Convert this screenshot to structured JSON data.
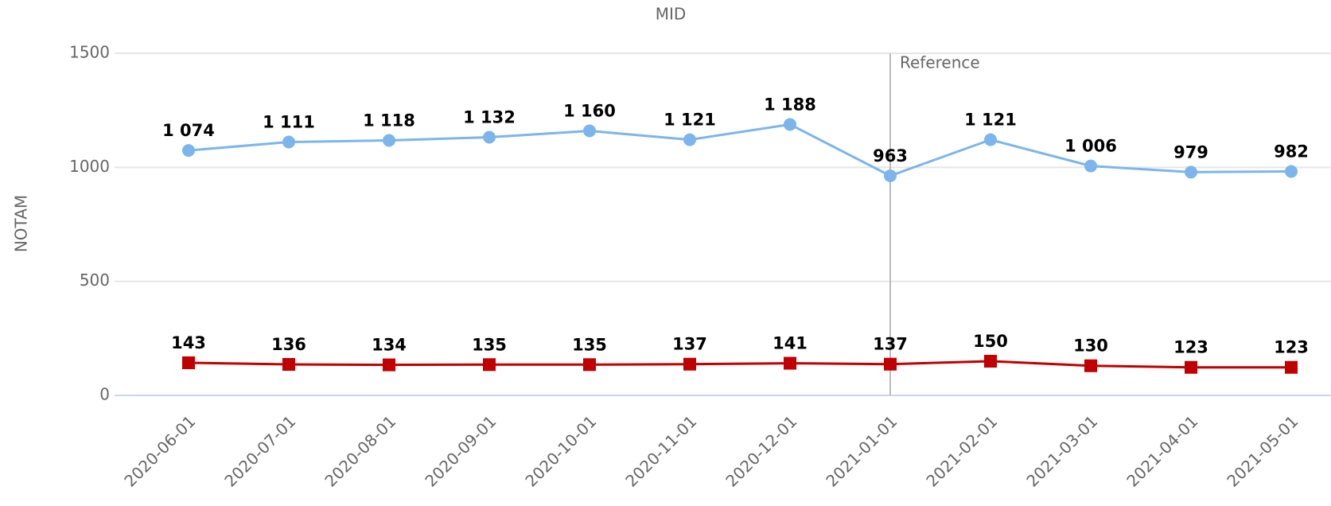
{
  "chart_data": {
    "type": "line",
    "title": "MID",
    "y_label": "NOTAM",
    "categories": [
      "2020-06-01",
      "2020-07-01",
      "2020-08-01",
      "2020-09-01",
      "2020-10-01",
      "2020-11-01",
      "2020-12-01",
      "2021-01-01",
      "2021-02-01",
      "2021-03-01",
      "2021-04-01",
      "2021-05-01"
    ],
    "series": [
      {
        "color": "#7cb5ec",
        "marker": "circle",
        "values": [
          1074,
          1111,
          1118,
          1132,
          1160,
          1121,
          1188,
          963,
          1121,
          1006,
          979,
          982
        ],
        "value_labels": [
          "1 074",
          "1 111",
          "1 118",
          "1 132",
          "1 160",
          "1 121",
          "1 188",
          "963",
          "1 121",
          "1 006",
          "979",
          "982"
        ]
      },
      {
        "color": "#c00000",
        "marker": "square",
        "values": [
          143,
          136,
          134,
          135,
          135,
          137,
          141,
          137,
          150,
          130,
          123,
          123
        ]
      }
    ],
    "annotations": [
      {
        "text": "Reference",
        "x": "2021-01-01"
      }
    ],
    "ylim": [
      0,
      1500
    ],
    "yticks": [
      0,
      500,
      1000,
      1500
    ],
    "grid": true
  }
}
